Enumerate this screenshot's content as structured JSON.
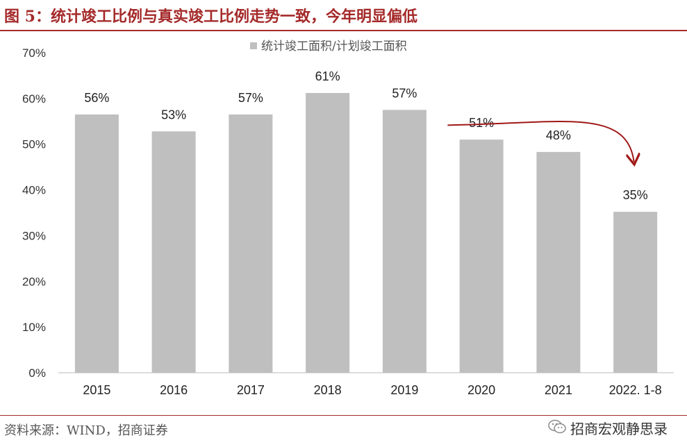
{
  "header": {
    "title": "图 5：统计竣工比例与真实竣工比例走势一致，今年明显偏低"
  },
  "footer": {
    "source": "资料来源：WIND，招商证券",
    "brand": "招商宏观静思录",
    "brand_icon": "wechat-icon"
  },
  "colors": {
    "accent": "#a52a2a",
    "bar": "#bfbfbf",
    "arrow": "#a01818"
  },
  "chart_data": {
    "type": "bar",
    "title": "",
    "xlabel": "",
    "ylabel": "",
    "categories": [
      "2015",
      "2016",
      "2017",
      "2018",
      "2019",
      "2020",
      "2021",
      "2022. 1-8"
    ],
    "series": [
      {
        "name": "统计竣工面积/计划竣工面积",
        "values": [
          56.5,
          52.8,
          56.5,
          61.2,
          57.5,
          51.0,
          48.3,
          35.2
        ],
        "data_labels": [
          "56%",
          "53%",
          "57%",
          "61%",
          "57%",
          "51%",
          "48%",
          "35%"
        ]
      }
    ],
    "ylim": [
      0,
      70
    ],
    "yticks": [
      "0%",
      "10%",
      "20%",
      "30%",
      "40%",
      "50%",
      "60%",
      "70%"
    ],
    "grid": false,
    "legend_position": "top-center",
    "annotations": [
      {
        "type": "arrow",
        "from_category": "2019",
        "to_category": "2022. 1-8",
        "meaning": "downward trend"
      }
    ]
  }
}
